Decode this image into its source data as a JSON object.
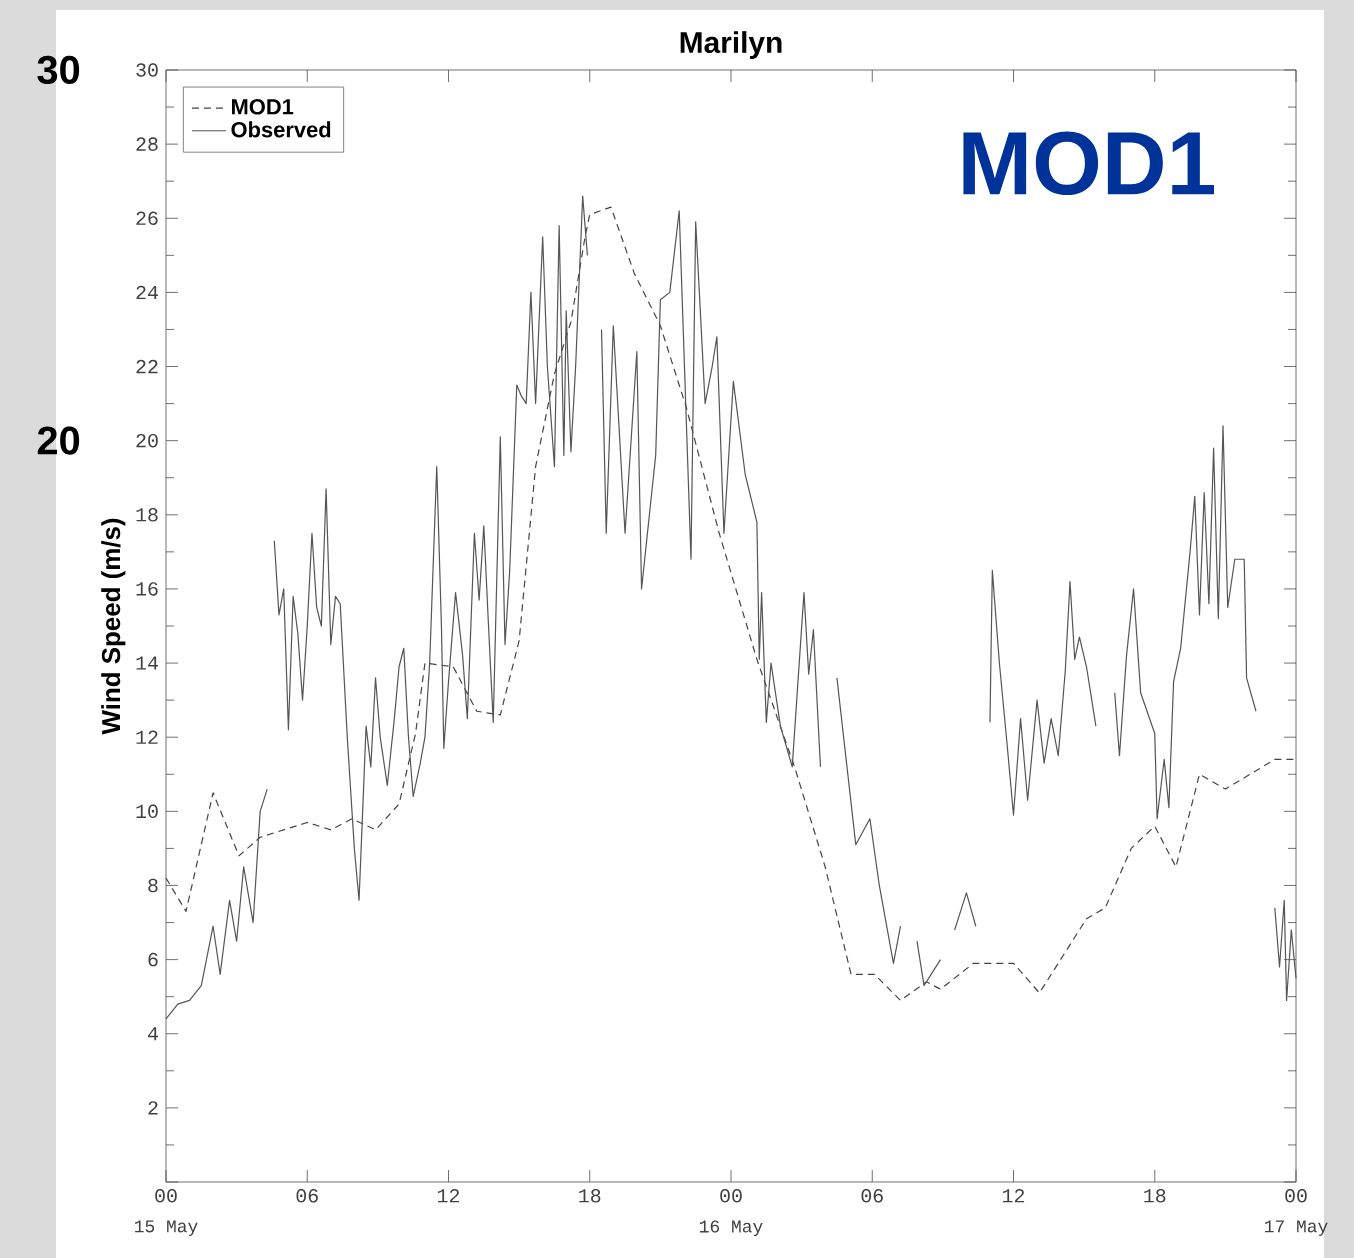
{
  "chart_data": {
    "type": "line",
    "title": "Marilyn",
    "ylabel": "Wind Speed (m/s)",
    "annotations": [
      "30",
      "20",
      "MOD1",
      "15 May",
      "16 May",
      "17 May"
    ],
    "xlim": [
      0,
      48
    ],
    "ylim": [
      0,
      30
    ],
    "xticks": [
      {
        "value": 0,
        "label": "00"
      },
      {
        "value": 6,
        "label": "06"
      },
      {
        "value": 12,
        "label": "12"
      },
      {
        "value": 18,
        "label": "18"
      },
      {
        "value": 24,
        "label": "00"
      },
      {
        "value": 30,
        "label": "06"
      },
      {
        "value": 36,
        "label": "12"
      },
      {
        "value": 42,
        "label": "18"
      },
      {
        "value": 48,
        "label": "00"
      }
    ],
    "yticks": [
      {
        "value": 0,
        "label": null
      },
      2,
      4,
      6,
      8,
      10,
      12,
      14,
      16,
      18,
      20,
      22,
      24,
      26,
      28,
      30
    ],
    "legend": "top left",
    "grid": false,
    "marker": "none",
    "series": [
      {
        "name": "MOD1",
        "color": "#444444",
        "line_style": "dashed",
        "x": [
          0,
          0.85,
          2.0,
          3.1,
          4.0,
          6.0,
          7.0,
          7.9,
          8.9,
          9.9,
          10.6,
          11.0,
          12.2,
          13.2,
          14.2,
          15.0,
          15.7,
          16.5,
          17.2,
          17.8,
          18.0,
          18.9,
          19.9,
          21.0,
          22.1,
          23.5,
          25.1,
          26.7,
          28.0,
          29.1,
          30.1,
          31.2,
          32.3,
          32.9,
          34.3,
          36.0,
          37.1,
          39.1,
          39.9,
          41.0,
          42.0,
          42.9,
          43.9,
          45.0,
          47.1,
          48.0
        ],
        "values": [
          8.2,
          7.3,
          10.5,
          8.8,
          9.3,
          9.7,
          9.5,
          9.8,
          9.5,
          10.2,
          12.1,
          14.0,
          13.9,
          12.7,
          12.6,
          14.6,
          19.3,
          21.8,
          23.2,
          25.5,
          26.1,
          26.3,
          24.5,
          23.1,
          20.9,
          17.5,
          14.1,
          11.2,
          8.5,
          5.6,
          5.6,
          4.9,
          5.4,
          5.2,
          5.9,
          5.9,
          5.1,
          7.1,
          7.4,
          9.0,
          9.6,
          8.5,
          11.0,
          10.6,
          11.4,
          11.4
        ]
      },
      {
        "name": "Observed",
        "color": "#555555",
        "line_style": "solid",
        "x": [
          0,
          0.5,
          1.0,
          1.5,
          2.0,
          2.3,
          2.7,
          3.0,
          3.3,
          3.7,
          4.0,
          4.3,
          4.45,
          4.6,
          4.8,
          5.0,
          5.2,
          5.4,
          5.6,
          5.8,
          6.0,
          6.2,
          6.4,
          6.6,
          6.8,
          7.0,
          7.2,
          7.4,
          7.7,
          8.0,
          8.2,
          8.5,
          8.7,
          8.9,
          9.1,
          9.4,
          9.7,
          9.9,
          10.1,
          10.3,
          10.5,
          10.8,
          11.0,
          11.2,
          11.5,
          11.7,
          11.8,
          12.0,
          12.3,
          12.6,
          12.8,
          13.1,
          13.3,
          13.5,
          13.7,
          13.9,
          14.2,
          14.4,
          14.6,
          14.9,
          15.1,
          15.3,
          15.5,
          15.7,
          16.0,
          16.2,
          16.5,
          16.7,
          16.9,
          17.0,
          17.2,
          17.4,
          17.7,
          17.9,
          18.3,
          18.5,
          18.7,
          19.0,
          19.5,
          20.0,
          20.2,
          20.8,
          21.0,
          21.4,
          21.8,
          22.3,
          22.5,
          22.9,
          23.2,
          23.4,
          23.7,
          24.1,
          24.6,
          25.1,
          25.2,
          25.3,
          25.5,
          25.7,
          26.1,
          26.6,
          27.1,
          27.3,
          27.5,
          27.8,
          28.1,
          28.5,
          29.3,
          29.9,
          30.3,
          30.9,
          31.2,
          31.5,
          31.9,
          32.2,
          32.5,
          32.9,
          33.2,
          33.5,
          33.7,
          34.0,
          34.4,
          34.7,
          35.0,
          35.1,
          35.4,
          35.7,
          36.0,
          36.3,
          36.6,
          37.0,
          37.3,
          37.6,
          37.9,
          38.2,
          38.4,
          38.6,
          38.8,
          39.1,
          39.5,
          39.9,
          40.3,
          40.5,
          40.8,
          41.1,
          41.4,
          42.0,
          42.1,
          42.4,
          42.6,
          42.8,
          43.1,
          43.5,
          43.7,
          43.9,
          44.1,
          44.3,
          44.5,
          44.7,
          44.9,
          45.1,
          45.4,
          45.8,
          45.9,
          46.3,
          46.7,
          47.1,
          47.3,
          47.5,
          47.6,
          47.8,
          48.0
        ],
        "values": [
          4.4,
          4.8,
          4.9,
          5.3,
          6.9,
          5.6,
          7.6,
          6.5,
          8.5,
          7.0,
          10.0,
          10.6,
          null,
          17.3,
          15.3,
          16.0,
          12.2,
          15.8,
          14.8,
          13.0,
          15.0,
          17.5,
          15.5,
          15.0,
          18.7,
          14.5,
          15.8,
          15.6,
          12.0,
          9.0,
          7.6,
          12.3,
          11.2,
          13.6,
          12.0,
          10.7,
          12.5,
          13.9,
          14.4,
          12.0,
          10.4,
          11.3,
          12.0,
          14.0,
          19.3,
          15.0,
          11.7,
          13.5,
          15.9,
          14.2,
          12.5,
          17.5,
          15.7,
          17.7,
          15.0,
          12.4,
          20.1,
          14.5,
          16.5,
          21.5,
          21.2,
          21.0,
          24.0,
          21.0,
          25.5,
          22.0,
          19.3,
          25.8,
          19.6,
          23.5,
          19.7,
          22.0,
          26.6,
          25.0,
          null,
          23.0,
          17.5,
          23.1,
          17.5,
          22.4,
          16.0,
          19.6,
          23.8,
          24.0,
          26.2,
          16.8,
          25.9,
          21.0,
          22.0,
          22.8,
          17.5,
          21.6,
          19.1,
          17.8,
          14.1,
          15.9,
          12.4,
          14.0,
          12.3,
          11.2,
          15.9,
          13.7,
          14.9,
          11.2,
          null,
          13.6,
          9.1,
          9.8,
          8.0,
          5.9,
          6.9,
          null,
          6.5,
          5.3,
          5.6,
          6.0,
          null,
          6.8,
          7.2,
          7.8,
          6.9,
          null,
          12.4,
          16.5,
          14.0,
          12.0,
          9.9,
          12.5,
          10.3,
          13.0,
          11.3,
          12.5,
          11.5,
          13.8,
          16.2,
          14.1,
          14.7,
          13.9,
          12.3,
          null,
          13.2,
          11.5,
          14.2,
          16.0,
          13.2,
          12.1,
          9.8,
          11.4,
          10.1,
          13.5,
          14.4,
          17.0,
          18.5,
          15.3,
          18.6,
          15.6,
          19.8,
          15.2,
          20.4,
          15.5,
          16.8,
          16.8,
          13.6,
          12.7,
          null,
          7.4,
          5.8,
          7.6,
          4.9,
          6.8,
          5.5
        ]
      }
    ]
  }
}
